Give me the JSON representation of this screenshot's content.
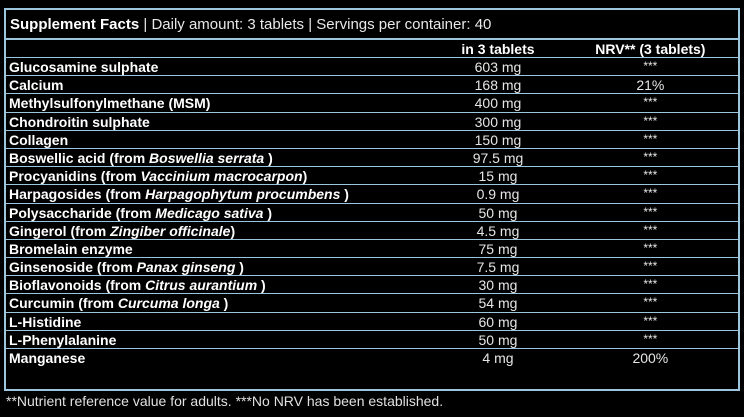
{
  "header": {
    "title": "Supplement Facts",
    "separator": "|",
    "daily_amount": "Daily amount: 3 tablets",
    "servings": "Servings per container: 40"
  },
  "columns": {
    "name": "",
    "amount": "in 3 tablets",
    "nrv": "NRV** (3 tablets)"
  },
  "rows": [
    {
      "name": "Glucosamine sulphate",
      "source": "",
      "amount": "603 mg",
      "nrv": "***"
    },
    {
      "name": "Calcium",
      "source": "",
      "amount": "168 mg",
      "nrv": "21%"
    },
    {
      "name": "Methylsulfonylmethane (MSM)",
      "source": "",
      "amount": "400 mg",
      "nrv": "***"
    },
    {
      "name": "Chondroitin sulphate",
      "source": "",
      "amount": "300 mg",
      "nrv": "***"
    },
    {
      "name": "Collagen",
      "source": "",
      "amount": "150 mg",
      "nrv": "***"
    },
    {
      "name": "Boswellic acid (from ",
      "source": "Boswellia serrata",
      "tail": " )",
      "amount": "97.5 mg",
      "nrv": "***"
    },
    {
      "name": "Procyanidins (from ",
      "source": "Vaccinium macrocarpon",
      "tail": ")",
      "amount": "15 mg",
      "nrv": "***"
    },
    {
      "name": "Harpagosides (from ",
      "source": "Harpagophytum procumbens",
      "tail": " )",
      "amount": "0.9 mg",
      "nrv": "***"
    },
    {
      "name": "Polysaccharide (from ",
      "source": "Medicago sativa",
      "tail": " )",
      "amount": "50 mg",
      "nrv": "***"
    },
    {
      "name": "Gingerol (from ",
      "source": "Zingiber officinale",
      "tail": ")",
      "amount": "4.5 mg",
      "nrv": "***"
    },
    {
      "name": "Bromelain enzyme",
      "source": "",
      "amount": "75 mg",
      "nrv": "***"
    },
    {
      "name": "Ginsenoside (from ",
      "source": "Panax ginseng",
      "tail": " )",
      "amount": "7.5 mg",
      "nrv": "***"
    },
    {
      "name": "Bioflavonoids (from ",
      "source": "Citrus aurantium",
      "tail": " )",
      "amount": "30 mg",
      "nrv": "***"
    },
    {
      "name": "Curcumin (from ",
      "source": "Curcuma longa",
      "tail": " )",
      "amount": "54 mg",
      "nrv": "***"
    },
    {
      "name": "L-Histidine",
      "source": "",
      "amount": "60 mg",
      "nrv": "***"
    },
    {
      "name": "L-Phenylalanine",
      "source": "",
      "amount": "50 mg",
      "nrv": "***"
    },
    {
      "name": "Manganese",
      "source": "",
      "amount": "4 mg",
      "nrv": "200%"
    }
  ],
  "footnote": "**Nutrient reference value for adults. ***No NRV has been established.",
  "colors": {
    "background": "#000000",
    "border": "#9cc6dc",
    "text": "#ffffff"
  }
}
